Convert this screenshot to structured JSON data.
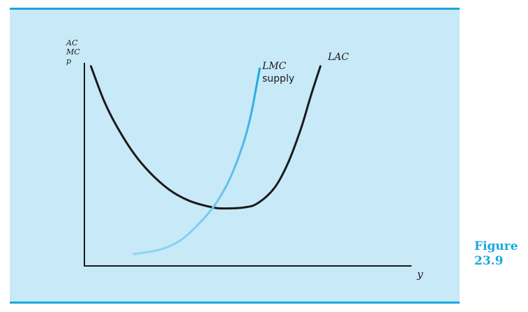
{
  "chart_data": {
    "type": "line",
    "ylabel_lines": [
      "AC",
      "MC",
      "p"
    ],
    "xlabel": "y",
    "xlim": [
      0,
      10
    ],
    "ylim": [
      0,
      10
    ],
    "grid": false,
    "series": [
      {
        "name": "LAC",
        "label_lines": [
          "LAC"
        ],
        "color": "#1a1a1a",
        "points": [
          [
            0.2,
            9.2
          ],
          [
            0.6,
            7.6
          ],
          [
            1.0,
            6.4
          ],
          [
            1.5,
            5.2
          ],
          [
            2.0,
            4.3
          ],
          [
            2.6,
            3.5
          ],
          [
            3.2,
            3.0
          ],
          [
            3.9,
            2.7
          ],
          [
            4.3,
            2.65
          ],
          [
            4.9,
            2.7
          ],
          [
            5.3,
            2.9
          ],
          [
            5.8,
            3.6
          ],
          [
            6.2,
            4.7
          ],
          [
            6.6,
            6.3
          ],
          [
            6.9,
            7.8
          ],
          [
            7.2,
            9.2
          ]
        ]
      },
      {
        "name": "LMC",
        "label_lines": [
          "LMC",
          "supply"
        ],
        "color": "#1aa7dd",
        "points": [
          [
            1.5,
            0.55
          ],
          [
            2.3,
            0.75
          ],
          [
            2.9,
            1.15
          ],
          [
            3.4,
            1.8
          ],
          [
            3.9,
            2.65
          ],
          [
            4.3,
            3.6
          ],
          [
            4.6,
            4.6
          ],
          [
            4.9,
            5.9
          ],
          [
            5.1,
            7.1
          ],
          [
            5.25,
            8.3
          ],
          [
            5.35,
            9.1
          ]
        ]
      }
    ]
  },
  "caption": {
    "line1": "Figure",
    "line2": "23.9"
  }
}
